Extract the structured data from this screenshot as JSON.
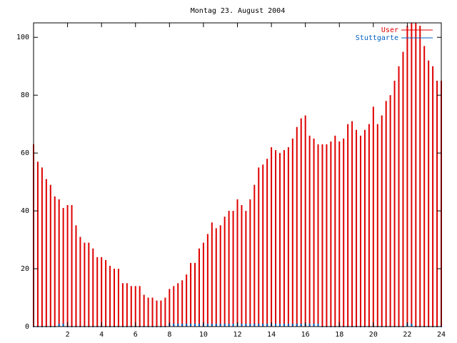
{
  "chart_data": {
    "type": "impulse",
    "title": "Montag 23. August 2004",
    "x": [
      0,
      0.25,
      0.5,
      0.75,
      1,
      1.25,
      1.5,
      1.75,
      2,
      2.25,
      2.5,
      2.75,
      3,
      3.25,
      3.5,
      3.75,
      4,
      4.25,
      4.5,
      4.75,
      5,
      5.25,
      5.5,
      5.75,
      6,
      6.25,
      6.5,
      6.75,
      7,
      7.25,
      7.5,
      7.75,
      8,
      8.25,
      8.5,
      8.75,
      9,
      9.25,
      9.5,
      9.75,
      10,
      10.25,
      10.5,
      10.75,
      11,
      11.25,
      11.5,
      11.75,
      12,
      12.25,
      12.5,
      12.75,
      13,
      13.25,
      13.5,
      13.75,
      14,
      14.25,
      14.5,
      14.75,
      15,
      15.25,
      15.5,
      15.75,
      16,
      16.25,
      16.5,
      16.75,
      17,
      17.25,
      17.5,
      17.75,
      18,
      18.25,
      18.5,
      18.75,
      19,
      19.25,
      19.5,
      19.75,
      20,
      20.25,
      20.5,
      20.75,
      21,
      21.25,
      21.5,
      21.75,
      22,
      22.25,
      22.5,
      22.75,
      23,
      23.25,
      23.5,
      23.75,
      24
    ],
    "series": [
      {
        "name": "User",
        "color": "#e00000",
        "values": [
          63,
          57,
          55,
          51,
          49,
          45,
          44,
          41,
          42,
          42,
          35,
          31,
          29,
          29,
          27,
          24,
          24,
          23,
          21,
          20,
          20,
          15,
          15,
          14,
          14,
          14,
          11,
          10,
          10,
          9,
          9,
          10,
          13,
          14,
          15,
          16,
          18,
          22,
          22,
          27,
          29,
          32,
          36,
          34,
          35,
          38,
          40,
          40,
          44,
          42,
          40,
          44,
          49,
          55,
          56,
          58,
          62,
          61,
          60,
          61,
          62,
          65,
          69,
          72,
          73,
          66,
          65,
          63,
          63,
          63,
          64,
          66,
          64,
          65,
          70,
          71,
          68,
          66,
          68,
          70,
          76,
          70,
          73,
          78,
          80,
          85,
          90,
          95,
          104,
          105,
          105,
          104,
          97,
          92,
          90,
          85,
          85
        ]
      },
      {
        "name": "Stuttgarte",
        "color": "#0060c0",
        "values": [
          0,
          0,
          0,
          0,
          0,
          0,
          1,
          1,
          0,
          0,
          0,
          0,
          0,
          0,
          0,
          0,
          0,
          0,
          0,
          0,
          0,
          0,
          0,
          0,
          0,
          0,
          0,
          0,
          0,
          0,
          0,
          0,
          1,
          1,
          1,
          1,
          1,
          1,
          1,
          1,
          1,
          1,
          1,
          1,
          1,
          1,
          1,
          1,
          1,
          1,
          1,
          1,
          1,
          1,
          1,
          1,
          1,
          1,
          1,
          1,
          1,
          1,
          1,
          1,
          1,
          1,
          1,
          1,
          0,
          0,
          0,
          0,
          0,
          0,
          0,
          0,
          0,
          0,
          0,
          0,
          0,
          0,
          0,
          0,
          0,
          0,
          0,
          0,
          1,
          1,
          0,
          0,
          0,
          0,
          0,
          0,
          0
        ]
      }
    ],
    "xlim": [
      0,
      24
    ],
    "xticks": [
      2,
      4,
      6,
      8,
      10,
      12,
      14,
      16,
      18,
      20,
      22,
      24
    ],
    "ylim": [
      0,
      105
    ],
    "yticks": [
      0,
      20,
      40,
      60,
      80,
      100
    ],
    "legend": "top-right"
  }
}
